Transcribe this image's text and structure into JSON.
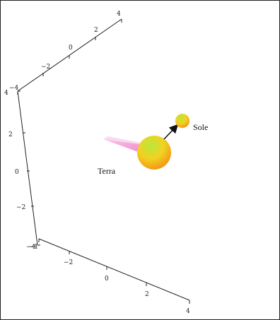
{
  "frame": {
    "border_color": "#222222",
    "background": "#ffffff"
  },
  "bodies": {
    "terra": {
      "label": "Terra",
      "gradient": [
        "#b9e83a",
        "#f3d122",
        "#f39a15"
      ]
    },
    "sole": {
      "label": "Sole",
      "gradient": [
        "#b9e83a",
        "#f3d122",
        "#f39a15"
      ]
    }
  },
  "vectors": {
    "terra_to_sole": {
      "color": "#111111"
    },
    "velocity": {
      "color": "#f3a7d9"
    }
  },
  "axes": {
    "top": {
      "ticks": [
        "4",
        "2",
        "0",
        "−2",
        "−4"
      ]
    },
    "left": {
      "ticks": [
        "4",
        "2",
        "0",
        "−2",
        "−4"
      ]
    },
    "bottom": {
      "ticks": [
        "−4",
        "−2",
        "0",
        "2",
        "4"
      ]
    }
  }
}
